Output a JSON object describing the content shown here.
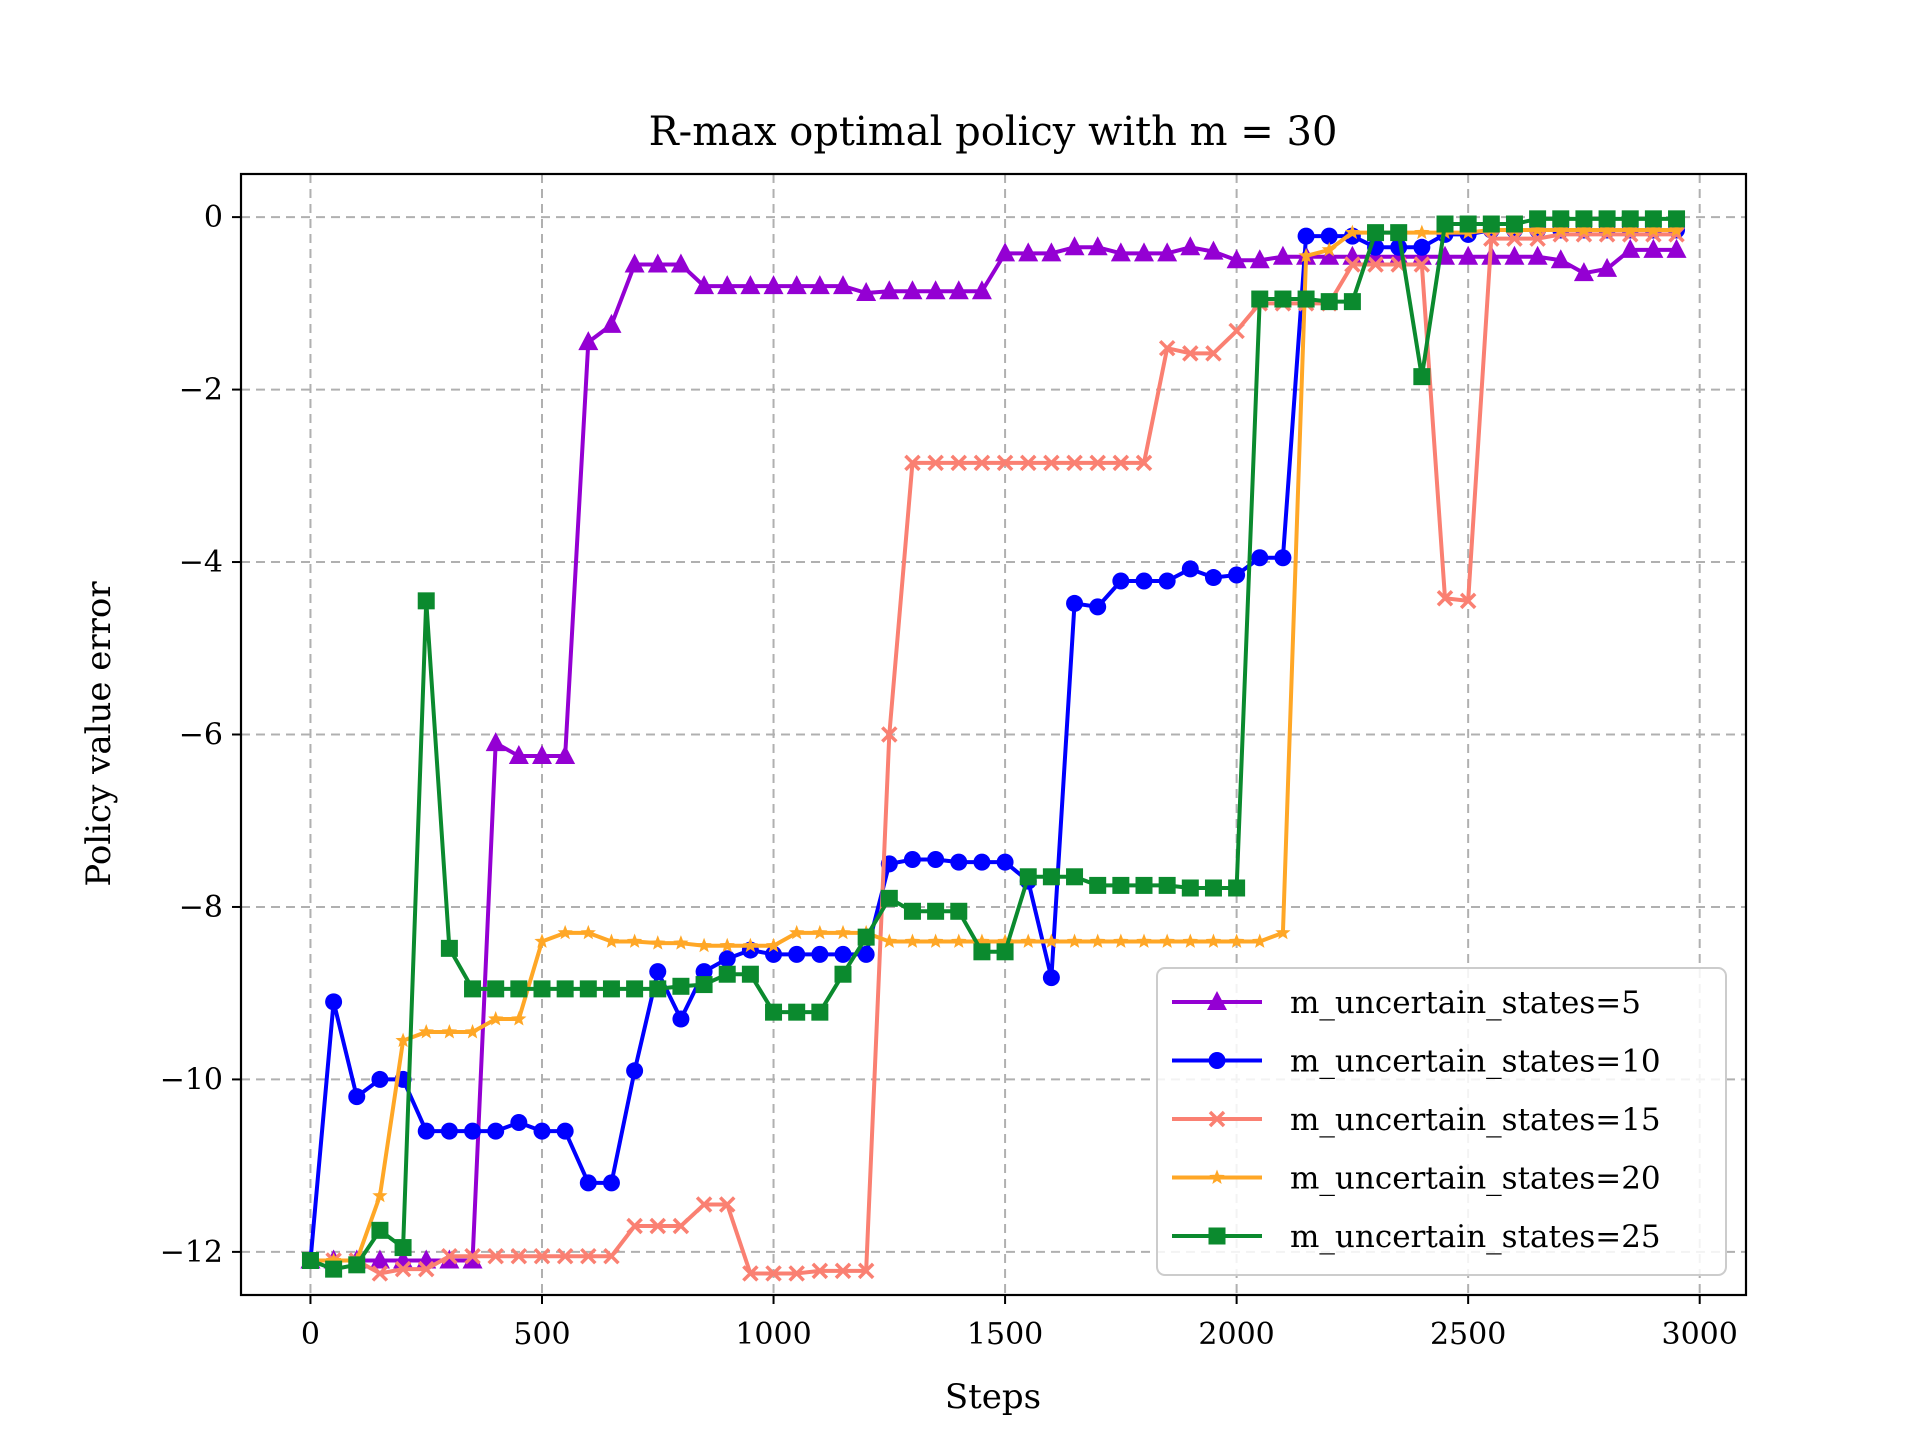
{
  "chart_data": {
    "type": "line",
    "title": "R-max optimal policy with m = 30",
    "xlabel": "Steps",
    "ylabel": "Policy value error",
    "xlim": [
      -150,
      3100
    ],
    "ylim": [
      -12.5,
      0.5
    ],
    "xticks": [
      0,
      500,
      1000,
      1500,
      2000,
      2500,
      3000
    ],
    "xtick_labels": [
      "0",
      "500",
      "1000",
      "1500",
      "2000",
      "2500",
      "3000"
    ],
    "yticks": [
      0,
      -2,
      -4,
      -6,
      -8,
      -10,
      -12
    ],
    "ytick_labels": [
      "0",
      "−2",
      "−4",
      "−6",
      "−8",
      "−10",
      "−12"
    ],
    "grid": true,
    "legend_position": "lower-right",
    "x": [
      0,
      50,
      100,
      150,
      200,
      250,
      300,
      350,
      400,
      450,
      500,
      550,
      600,
      650,
      700,
      750,
      800,
      850,
      900,
      950,
      1000,
      1050,
      1100,
      1150,
      1200,
      1250,
      1300,
      1350,
      1400,
      1450,
      1500,
      1550,
      1600,
      1650,
      1700,
      1750,
      1800,
      1850,
      1900,
      1950,
      2000,
      2050,
      2100,
      2150,
      2200,
      2250,
      2300,
      2350,
      2400,
      2450,
      2500,
      2550,
      2600,
      2650,
      2700,
      2750,
      2800,
      2850,
      2900,
      2950
    ],
    "series": [
      {
        "name": "m_uncertain_states=5",
        "color": "#9400D3",
        "marker": "triangle",
        "values": [
          -12.1,
          -12.1,
          -12.1,
          -12.1,
          -12.1,
          -12.1,
          -12.1,
          -12.1,
          -6.1,
          -6.25,
          -6.25,
          -6.25,
          -1.45,
          -1.25,
          -0.55,
          -0.55,
          -0.55,
          -0.8,
          -0.8,
          -0.8,
          -0.8,
          -0.8,
          -0.8,
          -0.8,
          -0.88,
          -0.86,
          -0.86,
          -0.86,
          -0.86,
          -0.86,
          -0.42,
          -0.42,
          -0.42,
          -0.35,
          -0.35,
          -0.42,
          -0.42,
          -0.42,
          -0.35,
          -0.4,
          -0.5,
          -0.5,
          -0.46,
          -0.46,
          -0.46,
          -0.46,
          -0.46,
          -0.46,
          -0.46,
          -0.46,
          -0.46,
          -0.46,
          -0.46,
          -0.46,
          -0.5,
          -0.65,
          -0.6,
          -0.38,
          -0.38,
          -0.38
        ]
      },
      {
        "name": "m_uncertain_states=10",
        "color": "#0000FF",
        "marker": "circle",
        "values": [
          -12.1,
          -9.1,
          -10.2,
          -10.0,
          -10.0,
          -10.6,
          -10.6,
          -10.6,
          -10.6,
          -10.5,
          -10.6,
          -10.6,
          -11.2,
          -11.2,
          -9.9,
          -8.75,
          -9.3,
          -8.75,
          -8.6,
          -8.5,
          -8.55,
          -8.55,
          -8.55,
          -8.55,
          -8.55,
          -7.5,
          -7.45,
          -7.45,
          -7.48,
          -7.48,
          -7.48,
          -7.7,
          -8.82,
          -4.48,
          -4.52,
          -4.22,
          -4.22,
          -4.22,
          -4.08,
          -4.18,
          -4.15,
          -3.95,
          -3.95,
          -0.22,
          -0.22,
          -0.22,
          -0.35,
          -0.35,
          -0.35,
          -0.2,
          -0.2,
          -0.15,
          -0.15,
          -0.15,
          -0.15,
          -0.15,
          -0.15,
          -0.15,
          -0.15,
          -0.15
        ]
      },
      {
        "name": "m_uncertain_states=15",
        "color": "#FA8072",
        "marker": "x",
        "values": [
          -12.1,
          -12.1,
          -12.1,
          -12.25,
          -12.2,
          -12.2,
          -12.05,
          -12.05,
          -12.05,
          -12.05,
          -12.05,
          -12.05,
          -12.05,
          -12.05,
          -11.7,
          -11.7,
          -11.7,
          -11.45,
          -11.45,
          -12.25,
          -12.25,
          -12.25,
          -12.22,
          -12.22,
          -12.22,
          -6.0,
          -2.85,
          -2.85,
          -2.85,
          -2.85,
          -2.85,
          -2.85,
          -2.85,
          -2.85,
          -2.85,
          -2.85,
          -2.85,
          -1.52,
          -1.58,
          -1.58,
          -1.32,
          -1.0,
          -1.0,
          -1.0,
          -1.0,
          -0.55,
          -0.55,
          -0.55,
          -0.55,
          -4.42,
          -4.45,
          -0.25,
          -0.25,
          -0.25,
          -0.2,
          -0.2,
          -0.2,
          -0.2,
          -0.2,
          -0.2
        ]
      },
      {
        "name": "m_uncertain_states=20",
        "color": "#FFA726",
        "marker": "star",
        "values": [
          -12.1,
          -12.1,
          -12.1,
          -11.35,
          -9.55,
          -9.45,
          -9.45,
          -9.45,
          -9.3,
          -9.3,
          -8.4,
          -8.3,
          -8.3,
          -8.4,
          -8.4,
          -8.42,
          -8.42,
          -8.45,
          -8.45,
          -8.45,
          -8.45,
          -8.3,
          -8.3,
          -8.3,
          -8.3,
          -8.4,
          -8.4,
          -8.4,
          -8.4,
          -8.4,
          -8.4,
          -8.4,
          -8.4,
          -8.4,
          -8.4,
          -8.4,
          -8.4,
          -8.4,
          -8.4,
          -8.4,
          -8.4,
          -8.4,
          -8.3,
          -0.45,
          -0.38,
          -0.18,
          -0.18,
          -0.18,
          -0.18,
          -0.18,
          -0.18,
          -0.15,
          -0.15,
          -0.15,
          -0.15,
          -0.15,
          -0.15,
          -0.15,
          -0.15,
          -0.15
        ]
      },
      {
        "name": "m_uncertain_states=25",
        "color": "#0B8A2E",
        "marker": "square",
        "values": [
          -12.1,
          -12.2,
          -12.15,
          -11.75,
          -11.95,
          -4.45,
          -8.48,
          -8.95,
          -8.95,
          -8.95,
          -8.95,
          -8.95,
          -8.95,
          -8.95,
          -8.95,
          -8.95,
          -8.92,
          -8.9,
          -8.78,
          -8.78,
          -9.22,
          -9.22,
          -9.22,
          -8.78,
          -8.35,
          -7.9,
          -8.05,
          -8.05,
          -8.05,
          -8.52,
          -8.52,
          -7.65,
          -7.65,
          -7.65,
          -7.75,
          -7.75,
          -7.75,
          -7.75,
          -7.78,
          -7.78,
          -7.78,
          -0.95,
          -0.95,
          -0.95,
          -0.98,
          -0.98,
          -0.18,
          -0.18,
          -1.85,
          -0.08,
          -0.08,
          -0.08,
          -0.08,
          -0.02,
          -0.02,
          -0.02,
          -0.02,
          -0.02,
          -0.02,
          -0.02
        ]
      }
    ]
  }
}
